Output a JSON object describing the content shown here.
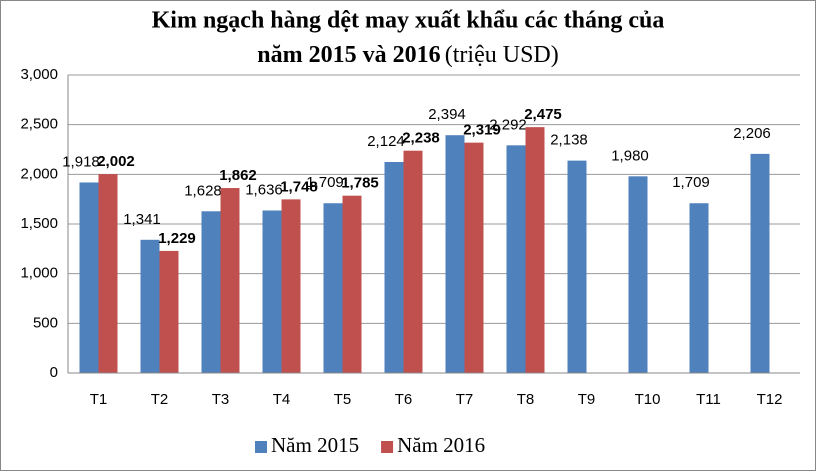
{
  "chart_data": {
    "type": "bar",
    "title": [
      "Kim ngạch hàng dệt may xuất khẩu các tháng của",
      "năm 2015 và 2016"
    ],
    "title_unit": "(triệu USD)",
    "categories": [
      "T1",
      "T2",
      "T3",
      "T4",
      "T5",
      "T6",
      "T7",
      "T8",
      "T9",
      "T10",
      "T11",
      "T12"
    ],
    "series": [
      {
        "name": "Năm 2015",
        "color": "#4f81bd",
        "values": [
          1918,
          1341,
          1628,
          1636,
          1709,
          2124,
          2394,
          2292,
          2138,
          1980,
          1709,
          2206
        ],
        "value_labels": [
          "1,918",
          "1,341",
          "1,628",
          "1,636",
          "1,709",
          "2,124",
          "2,394",
          "2,292",
          "2,138",
          "1,980",
          "1,709",
          "2,206"
        ]
      },
      {
        "name": "Năm 2016",
        "color": "#c0504d",
        "values": [
          2002,
          1229,
          1862,
          1748,
          1785,
          2238,
          2319,
          2475,
          null,
          null,
          null,
          null
        ],
        "value_labels": [
          "2,002",
          "1,229",
          "1,862",
          "1,748",
          "1,785",
          "2,238",
          "2,319",
          "2,475",
          null,
          null,
          null,
          null
        ]
      }
    ],
    "ylim": [
      0,
      3000
    ],
    "yticks": [
      0,
      500,
      {
        "value": 1000,
        "label": "1,000"
      },
      {
        "value": 1500,
        "label": "1,500"
      },
      {
        "value": 2000,
        "label": "2,000"
      },
      {
        "value": 2500,
        "label": "2,500"
      },
      {
        "value": 3000,
        "label": "3,000"
      }
    ],
    "grid": true,
    "legend": "bottom"
  }
}
